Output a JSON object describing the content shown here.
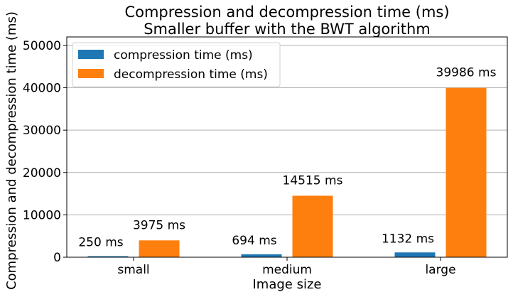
{
  "chart_data": {
    "type": "bar",
    "title": "Compression and decompression time (ms)",
    "subtitle": "Smaller buffer with the BWT algorithm",
    "xlabel": "Image size",
    "ylabel": "Compression and decompression time (ms)",
    "categories": [
      "small",
      "medium",
      "large"
    ],
    "ylim": [
      0,
      52000
    ],
    "yticks": [
      0,
      10000,
      20000,
      30000,
      40000,
      50000
    ],
    "grid": "horizontal",
    "legend_position": "top-left",
    "series": [
      {
        "name": "compression time (ms)",
        "color": "#1f77b4",
        "values": [
          250,
          694,
          1132
        ],
        "labels": [
          "250 ms",
          "694 ms",
          "1132 ms"
        ]
      },
      {
        "name": "decompression time (ms)",
        "color": "#ff7f0e",
        "values": [
          3975,
          14515,
          39986
        ],
        "labels": [
          "3975 ms",
          "14515 ms",
          "39986 ms"
        ]
      }
    ]
  }
}
